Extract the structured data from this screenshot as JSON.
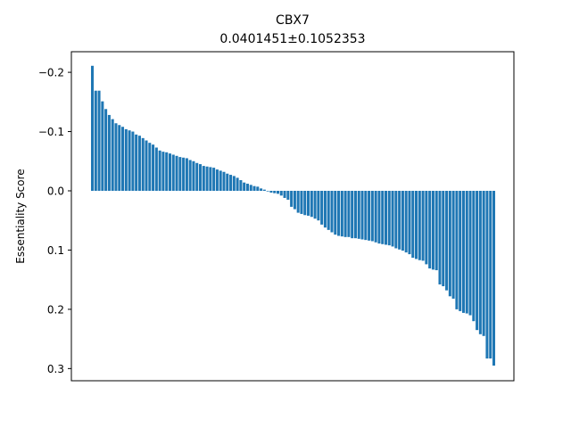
{
  "chart_data": {
    "type": "bar",
    "title": "CBX7",
    "subtitle": "0.0401451±0.1052353",
    "xlabel": "",
    "ylabel": "Essentiality Score",
    "ylim": [
      -0.21,
      0.32
    ],
    "y_inverted": true,
    "yticks": [
      -0.2,
      -0.1,
      0.0,
      0.1,
      0.2,
      0.3
    ],
    "ytick_labels": [
      "−0.2",
      "−0.1",
      "0.0",
      "0.1",
      "0.2",
      "0.3"
    ],
    "grid": false,
    "color": "#1f77b4",
    "series": [
      {
        "values": [
          -0.211,
          -0.169,
          -0.169,
          -0.151,
          -0.138,
          -0.128,
          -0.121,
          -0.114,
          -0.111,
          -0.108,
          -0.104,
          -0.102,
          -0.1,
          -0.095,
          -0.093,
          -0.089,
          -0.085,
          -0.081,
          -0.078,
          -0.073,
          -0.068,
          -0.066,
          -0.065,
          -0.063,
          -0.061,
          -0.059,
          -0.057,
          -0.056,
          -0.055,
          -0.052,
          -0.05,
          -0.047,
          -0.045,
          -0.042,
          -0.041,
          -0.04,
          -0.039,
          -0.036,
          -0.034,
          -0.032,
          -0.029,
          -0.027,
          -0.025,
          -0.022,
          -0.018,
          -0.014,
          -0.012,
          -0.01,
          -0.008,
          -0.007,
          -0.004,
          -0.002,
          0.001,
          0.003,
          0.004,
          0.005,
          0.008,
          0.012,
          0.015,
          0.027,
          0.031,
          0.037,
          0.039,
          0.041,
          0.042,
          0.044,
          0.047,
          0.05,
          0.057,
          0.062,
          0.066,
          0.07,
          0.074,
          0.076,
          0.077,
          0.078,
          0.078,
          0.08,
          0.08,
          0.081,
          0.082,
          0.083,
          0.084,
          0.085,
          0.087,
          0.089,
          0.09,
          0.091,
          0.092,
          0.094,
          0.097,
          0.099,
          0.101,
          0.104,
          0.107,
          0.113,
          0.115,
          0.117,
          0.118,
          0.124,
          0.131,
          0.133,
          0.134,
          0.158,
          0.161,
          0.168,
          0.178,
          0.182,
          0.2,
          0.203,
          0.206,
          0.207,
          0.21,
          0.22,
          0.235,
          0.242,
          0.245,
          0.283,
          0.283,
          0.295
        ]
      }
    ]
  }
}
